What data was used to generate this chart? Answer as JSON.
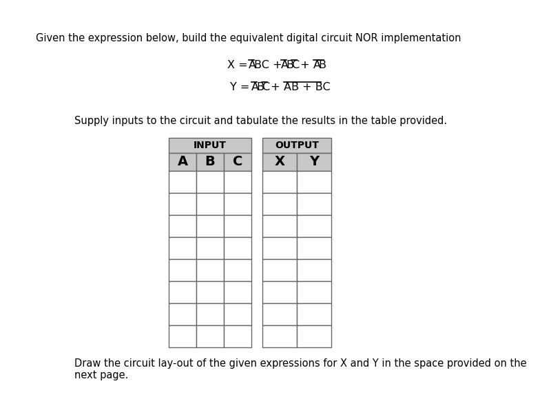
{
  "title_text": "Given the expression below, build the equivalent digital circuit NOR implementation",
  "supply_text": "Supply inputs to the circuit and tabulate the results in the table provided.",
  "draw_text": "Draw the circuit lay-out of the given expressions for X and Y in the space provided on the\nnext page.",
  "input_header": "INPUT",
  "output_header": "OUTPUT",
  "col_A": "A",
  "col_B": "B",
  "col_C": "C",
  "col_X": "X",
  "col_Y": "Y",
  "num_data_rows": 8,
  "header_bg": "#c8c8c8",
  "border_color": "#666666",
  "bg_color": "#ffffff",
  "text_color": "#000000",
  "title_fontsize": 10.5,
  "supply_fontsize": 10.5,
  "draw_fontsize": 10.5,
  "eq_fontsize": 11,
  "header_fontsize": 10,
  "subheader_fontsize": 14
}
